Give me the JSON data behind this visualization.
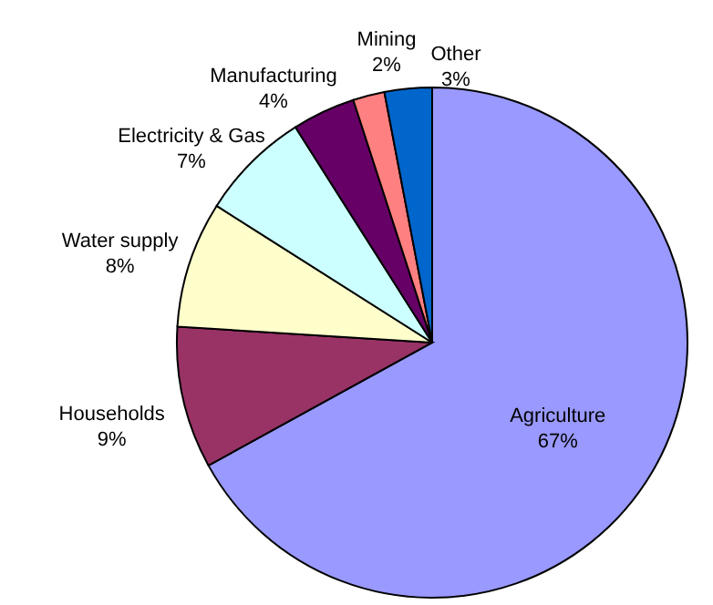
{
  "chart_data": {
    "type": "pie",
    "categories": [
      "Agriculture",
      "Households",
      "Water supply",
      "Electricity & Gas",
      "Manufacturing",
      "Mining",
      "Other"
    ],
    "values": [
      67,
      9,
      8,
      7,
      4,
      2,
      3
    ],
    "value_labels": [
      "67%",
      "9%",
      "8%",
      "7%",
      "4%",
      "2%",
      "3%"
    ],
    "colors": [
      "#9999ff",
      "#993366",
      "#ffffcc",
      "#ccffff",
      "#660066",
      "#ff8080",
      "#0066cc"
    ],
    "legend": false
  }
}
